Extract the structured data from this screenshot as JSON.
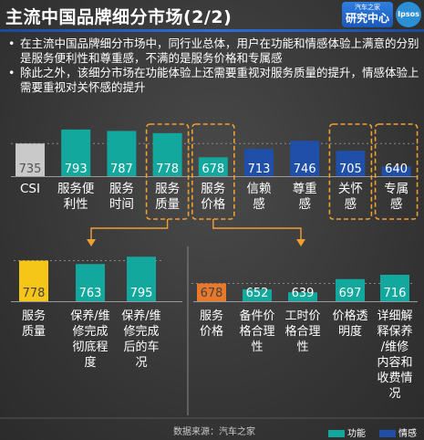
{
  "header": {
    "title": "主流中国品牌细分市场(2/2)",
    "logo_small": "汽车之家",
    "logo_big": "研究中心",
    "logo_ipsos": "Ipsos"
  },
  "bullets": [
    "在主流中国品牌细分市场中，同行业总体，用户在功能和情感体验上满意的分别是服务便利性和尊重感，不满的是服务价格和专属感",
    "除此之外，该细分市场在功能体验上还需要重视对服务质量的提升，情感体验上需要重视对关怀感的提升"
  ],
  "footer": {
    "source": "数据来源：汽车之家",
    "legend": [
      {
        "name": "功能",
        "color": "#13a89e"
      },
      {
        "name": "情感",
        "color": "#1f4fa8"
      }
    ]
  },
  "colors": {
    "gray": "#c9c9c9",
    "teal": "#13a89e",
    "blue": "#1f4fa8",
    "yellow": "#f5c518",
    "orange": "#e8782a",
    "highlight_border": "#f0a030"
  },
  "chart_data": [
    {
      "type": "bar",
      "categories": [
        "CSI",
        "服务便利性",
        "服务时间",
        "服务质量",
        "服务价格",
        "信赖感",
        "尊重感",
        "关怀感",
        "专属感"
      ],
      "category_labels": [
        [
          "CSI"
        ],
        [
          "服务便",
          "利性"
        ],
        [
          "服务",
          "时间"
        ],
        [
          "服务",
          "质量"
        ],
        [
          "服务",
          "价格"
        ],
        [
          "信赖",
          "感"
        ],
        [
          "尊重",
          "感"
        ],
        [
          "关怀",
          "感"
        ],
        [
          "专属",
          "感"
        ]
      ],
      "values": [
        735,
        793,
        787,
        778,
        678,
        713,
        746,
        705,
        640
      ],
      "group": [
        "overall",
        "功能",
        "功能",
        "功能",
        "功能",
        "情感",
        "情感",
        "情感",
        "情感"
      ],
      "highlighted": [
        "服务质量",
        "服务价格",
        "关怀感",
        "专属感"
      ],
      "data_labels": true
    },
    {
      "type": "bar",
      "categories": [
        "服务质量",
        "保养/维修完成彻底程度",
        "保养/维修完成后的车况"
      ],
      "category_labels": [
        [
          "服务",
          "质量"
        ],
        [
          "保养/维",
          "修完成",
          "彻底程",
          "度"
        ],
        [
          "保养/维",
          "修完成",
          "后的车",
          "况"
        ]
      ],
      "values": [
        778,
        763,
        795
      ],
      "data_labels": true
    },
    {
      "type": "bar",
      "categories": [
        "服务价格",
        "备件价格合理性",
        "工时价格合理性",
        "价格透明度",
        "详细解释保养/维修内容和收费情况"
      ],
      "category_labels": [
        [
          "服务",
          "价格"
        ],
        [
          "备件价",
          "格合理",
          "性"
        ],
        [
          "工时价",
          "格合理",
          "性"
        ],
        [
          "价格透",
          "明度"
        ],
        [
          "详细解",
          "释保养",
          "/维修",
          "内容和",
          "收费情",
          "况"
        ]
      ],
      "values": [
        678,
        652,
        639,
        697,
        716
      ],
      "data_labels": true
    }
  ]
}
